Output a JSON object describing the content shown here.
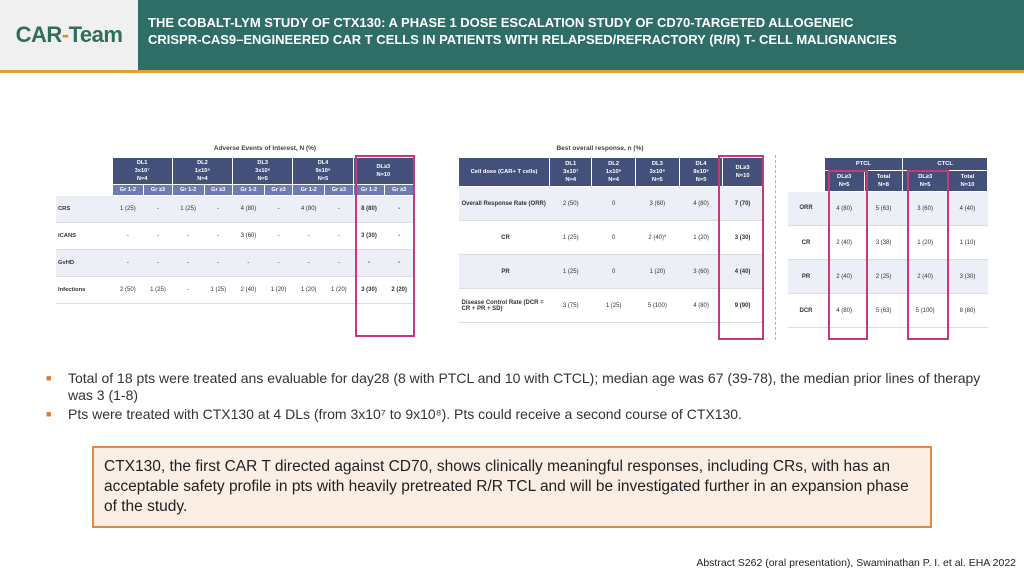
{
  "header": {
    "logo_car": "CAR",
    "logo_dash": "-",
    "logo_team": "Team",
    "title_line1": "THE COBALT-LYM STUDY OF CTX130: A PHASE 1 DOSE ESCALATION STUDY OF CD70-TARGETED ALLOGENEIC",
    "title_line2": "CRISPR-CAS9–ENGINEERED CAR T CELLS IN PATIENTS WITH RELAPSED/REFRACTORY (R/R) T- CELL MALIGNANCIES"
  },
  "ae_table": {
    "caption": "Adverse Events of Interest, N (%)",
    "groups": [
      {
        "l1": "DL1",
        "l2": "3x10⁷",
        "l3": "N=4"
      },
      {
        "l1": "DL2",
        "l2": "1x10⁸",
        "l3": "N=4"
      },
      {
        "l1": "DL3",
        "l2": "3x10⁸",
        "l3": "N=5"
      },
      {
        "l1": "DL4",
        "l2": "9x10⁸",
        "l3": "N=5"
      },
      {
        "l1": "DL≥3",
        "l2": "N=10",
        "l3": ""
      }
    ],
    "sub": [
      "Gr 1-2",
      "Gr ≥3"
    ],
    "rows": [
      {
        "label": "CRS",
        "v": [
          "1 (25)",
          "-",
          "1 (25)",
          "-",
          "4 (80)",
          "-",
          "4 (80)",
          "-",
          "8 (80)",
          "-"
        ]
      },
      {
        "label": "ICANS",
        "v": [
          "-",
          "-",
          "-",
          "-",
          "3 (60)",
          "-",
          "-",
          "-",
          "3 (30)",
          "-"
        ]
      },
      {
        "label": "GvHD",
        "v": [
          "-",
          "-",
          "-",
          "-",
          "-",
          "-",
          "-",
          "-",
          "-",
          "-"
        ]
      },
      {
        "label": "Infections",
        "v": [
          "2 (50)",
          "1 (25)",
          "-",
          "1 (25)",
          "2 (40)",
          "1 (20)",
          "1 (20)",
          "1 (20)",
          "3 (30)",
          "2 (20)"
        ]
      }
    ]
  },
  "bor_table": {
    "caption": "Best overall response, n (%)",
    "h_label": "Cell dose (CAR+ T cells)",
    "cols": [
      {
        "l1": "DL1",
        "l2": "3x10⁷",
        "l3": "N=4"
      },
      {
        "l1": "DL2",
        "l2": "1x10⁸",
        "l3": "N=4"
      },
      {
        "l1": "DL3",
        "l2": "3x10⁸",
        "l3": "N=5"
      },
      {
        "l1": "DL4",
        "l2": "9x10⁸",
        "l3": "N=5"
      },
      {
        "l1": "DL≥3",
        "l2": "N=10",
        "l3": ""
      }
    ],
    "rows": [
      {
        "label": "Overall Response Rate (ORR)",
        "v": [
          "2 (50)",
          "0",
          "3 (60)",
          "4 (80)",
          "7 (70)"
        ]
      },
      {
        "label": "CR",
        "v": [
          "1 (25)",
          "0",
          "2 (40)*",
          "1 (20)",
          "3 (30)"
        ]
      },
      {
        "label": "PR",
        "v": [
          "1 (25)",
          "0",
          "1 (20)",
          "3 (60)",
          "4 (40)"
        ]
      },
      {
        "label": "Disease Control Rate (DCR = CR + PR + SD)",
        "v": [
          "3 (75)",
          "1 (25)",
          "5 (100)",
          "4 (80)",
          "9 (90)"
        ]
      }
    ]
  },
  "pc_table": {
    "g1": "PTCL",
    "g2": "CTCL",
    "cols": [
      {
        "l1": "DL≥3",
        "l2": "N=5"
      },
      {
        "l1": "Total",
        "l2": "N=8"
      },
      {
        "l1": "DL≥3",
        "l2": "N=5"
      },
      {
        "l1": "Total",
        "l2": "N=10"
      }
    ],
    "rows": [
      {
        "label": "ORR",
        "v": [
          "4 (80)",
          "5 (63)",
          "3 (60)",
          "4 (40)"
        ]
      },
      {
        "label": "CR",
        "v": [
          "2 (40)",
          "3 (38)",
          "1 (20)",
          "1 (10)"
        ]
      },
      {
        "label": "PR",
        "v": [
          "2 (40)",
          "2 (25)",
          "2 (40)",
          "3 (30)"
        ]
      },
      {
        "label": "DCR",
        "v": [
          "4 (80)",
          "5 (63)",
          "5 (100)",
          "8 (80)"
        ]
      }
    ]
  },
  "bullets": [
    "Total of 18 pts were treated ans evaluable for day28 (8 with PTCL and 10 with CTCL); median age was 67 (39-78), the median prior lines of therapy was 3 (1-8)",
    "Pts were treated with CTX130 at 4 DLs (from 3x10⁷ to 9x10⁸). Pts could receive a second course of CTX130."
  ],
  "bullet_mark": "■",
  "callout": "CTX130, the first CAR T directed against CD70, shows clinically meaningful responses, including CRs, with has an acceptable safety profile in pts with heavily pretreated R/R TCL and will be investigated further in an expansion phase of the study.",
  "citation": "Abstract S262 (oral presentation), Swaminathan P. I. et al. EHA 2022"
}
